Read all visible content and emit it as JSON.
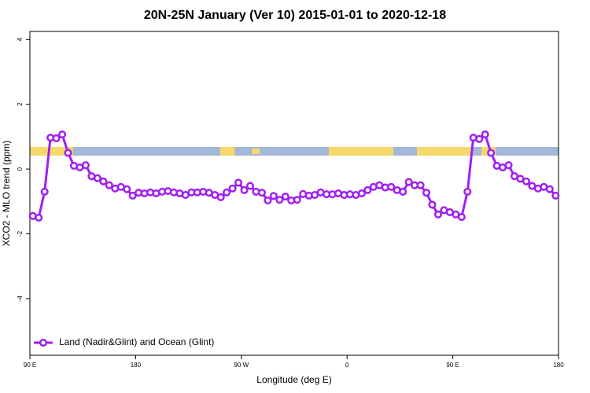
{
  "chart_data": {
    "type": "line",
    "title": "20N-25N January (Ver 10)   2015-01-01 to 2020-12-18",
    "x_label": "Longitude (deg E)",
    "y_label": "XCO2 - MLO trend (ppm)",
    "xlim": [
      90,
      540
    ],
    "ylim": [
      -5.75,
      4.25
    ],
    "xticks": [
      {
        "value": 90,
        "label": "90 E"
      },
      {
        "value": 180,
        "label": "180"
      },
      {
        "value": 270,
        "label": "90 W"
      },
      {
        "value": 360,
        "label": "0"
      },
      {
        "value": 450,
        "label": "90 E"
      },
      {
        "value": 540,
        "label": "180"
      }
    ],
    "yticks": [
      -4,
      -2,
      0,
      2,
      4
    ],
    "legend": "bottom-left",
    "x": [
      92.5,
      97.5,
      102.5,
      107.5,
      112.5,
      117.5,
      122.5,
      127.5,
      132.5,
      137.5,
      142.5,
      147.5,
      152.5,
      157.5,
      162.5,
      167.5,
      172.5,
      177.5,
      182.5,
      187.5,
      192.5,
      197.5,
      202.5,
      207.5,
      212.5,
      217.5,
      222.5,
      227.5,
      232.5,
      237.5,
      242.5,
      247.5,
      252.5,
      257.5,
      262.5,
      267.5,
      272.5,
      277.5,
      282.5,
      287.5,
      292.5,
      297.5,
      302.5,
      307.5,
      312.5,
      317.5,
      322.5,
      327.5,
      332.5,
      337.5,
      342.5,
      347.5,
      352.5,
      357.5,
      362.5,
      367.5,
      372.5,
      377.5,
      382.5,
      387.5,
      392.5,
      397.5,
      402.5,
      407.5,
      412.5,
      417.5,
      422.5,
      427.5,
      432.5,
      437.5,
      442.5,
      447.5,
      452.5,
      457.5,
      462.5,
      467.5,
      472.5,
      477.5,
      482.5,
      487.5,
      492.5,
      497.5,
      502.5,
      507.5,
      512.5,
      517.5,
      522.5,
      527.5,
      532.5,
      537.5
    ],
    "series": [
      {
        "name": "Land (Nadir&Glint) and Ocean (Glint)",
        "color": "#a020f0",
        "values": [
          -1.45,
          -1.5,
          -0.7,
          0.97,
          0.95,
          1.07,
          0.5,
          0.1,
          0.05,
          0.12,
          -0.22,
          -0.28,
          -0.38,
          -0.5,
          -0.6,
          -0.55,
          -0.62,
          -0.82,
          -0.73,
          -0.75,
          -0.72,
          -0.75,
          -0.7,
          -0.68,
          -0.72,
          -0.75,
          -0.8,
          -0.72,
          -0.72,
          -0.7,
          -0.73,
          -0.8,
          -0.87,
          -0.72,
          -0.6,
          -0.42,
          -0.65,
          -0.52,
          -0.7,
          -0.73,
          -0.97,
          -0.83,
          -0.95,
          -0.85,
          -0.97,
          -0.95,
          -0.77,
          -0.82,
          -0.8,
          -0.72,
          -0.78,
          -0.78,
          -0.75,
          -0.8,
          -0.78,
          -0.8,
          -0.75,
          -0.65,
          -0.55,
          -0.5,
          -0.57,
          -0.55,
          -0.65,
          -0.7,
          -0.4,
          -0.5,
          -0.5,
          -0.73,
          -1.1,
          -1.4,
          -1.27,
          -1.33,
          -1.4,
          -1.48,
          -0.7,
          0.97,
          0.93,
          1.07,
          0.5,
          0.1,
          0.05,
          0.12,
          -0.22,
          -0.3,
          -0.38,
          -0.52,
          -0.6,
          -0.55,
          -0.62,
          -0.82
        ]
      }
    ]
  }
}
